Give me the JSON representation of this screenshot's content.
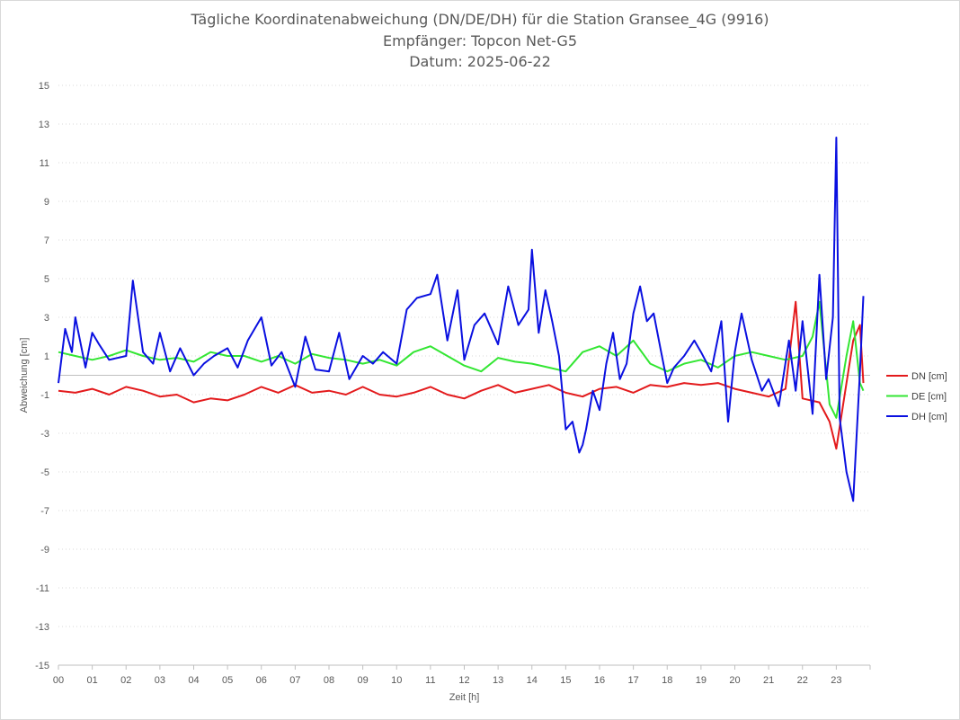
{
  "chart_data": {
    "type": "line",
    "title": "Tägliche Koordinatenabweichung (DN/DE/DH) für die Station Gransee_4G (9916)",
    "subtitle": "Empfänger: Topcon Net-G5",
    "date_line": "Datum: 2025-06-22",
    "xlabel": "Zeit [h]",
    "ylabel": "Abweichung [cm]",
    "ylim": [
      -15,
      15
    ],
    "xlim": [
      0,
      24
    ],
    "yticks": [
      "15",
      "13",
      "11",
      "9",
      "7",
      "5",
      "3",
      "1",
      "-1",
      "-3",
      "-5",
      "-7",
      "-9",
      "-11",
      "-13",
      "-15"
    ],
    "xticks": [
      "00",
      "01",
      "02",
      "03",
      "04",
      "05",
      "06",
      "07",
      "08",
      "09",
      "10",
      "11",
      "12",
      "13",
      "14",
      "15",
      "16",
      "17",
      "18",
      "19",
      "20",
      "21",
      "22",
      "23"
    ],
    "grid": "horizontal dotted",
    "legend_position": "right",
    "series": [
      {
        "name": "DN [cm]",
        "color": "#e31a1c",
        "x": [
          0,
          0.5,
          1,
          1.5,
          2,
          2.5,
          3,
          3.5,
          4,
          4.5,
          5,
          5.5,
          6,
          6.5,
          7,
          7.5,
          8,
          8.5,
          9,
          9.5,
          10,
          10.5,
          11,
          11.5,
          12,
          12.5,
          13,
          13.5,
          14,
          14.5,
          15,
          15.5,
          16,
          16.5,
          17,
          17.5,
          18,
          18.5,
          19,
          19.5,
          20,
          20.5,
          21,
          21.5,
          21.8,
          22,
          22.5,
          22.8,
          23,
          23.3,
          23.5,
          23.7,
          23.8
        ],
        "y": [
          -0.8,
          -0.9,
          -0.7,
          -1.0,
          -0.6,
          -0.8,
          -1.1,
          -1.0,
          -1.4,
          -1.2,
          -1.3,
          -1.0,
          -0.6,
          -0.9,
          -0.5,
          -0.9,
          -0.8,
          -1.0,
          -0.6,
          -1.0,
          -1.1,
          -0.9,
          -0.6,
          -1.0,
          -1.2,
          -0.8,
          -0.5,
          -0.9,
          -0.7,
          -0.5,
          -0.9,
          -1.1,
          -0.7,
          -0.6,
          -0.9,
          -0.5,
          -0.6,
          -0.4,
          -0.5,
          -0.4,
          -0.7,
          -0.9,
          -1.1,
          -0.7,
          3.8,
          -1.2,
          -1.4,
          -2.4,
          -3.8,
          -0.4,
          1.8,
          2.6,
          -0.4
        ]
      },
      {
        "name": "DE [cm]",
        "color": "#33e633",
        "x": [
          0,
          0.5,
          1,
          1.5,
          2,
          2.5,
          3,
          3.5,
          4,
          4.5,
          5,
          5.5,
          6,
          6.5,
          7,
          7.5,
          8,
          8.5,
          9,
          9.5,
          10,
          10.5,
          11,
          11.5,
          12,
          12.5,
          13,
          13.5,
          14,
          14.5,
          15,
          15.5,
          16,
          16.5,
          17,
          17.5,
          18,
          18.5,
          19,
          19.5,
          20,
          20.5,
          21,
          21.5,
          22,
          22.3,
          22.5,
          22.8,
          23,
          23.3,
          23.5,
          23.7,
          23.8
        ],
        "y": [
          1.2,
          1.0,
          0.8,
          1.0,
          1.3,
          1.0,
          0.8,
          0.9,
          0.7,
          1.2,
          1.0,
          1.0,
          0.7,
          1.0,
          0.6,
          1.1,
          0.9,
          0.8,
          0.6,
          0.8,
          0.5,
          1.2,
          1.5,
          1.0,
          0.5,
          0.2,
          0.9,
          0.7,
          0.6,
          0.4,
          0.2,
          1.2,
          1.5,
          1.0,
          1.8,
          0.6,
          0.2,
          0.6,
          0.8,
          0.4,
          1.0,
          1.2,
          1.0,
          0.8,
          1.0,
          2.0,
          3.8,
          -1.5,
          -2.2,
          1.0,
          2.8,
          -0.4,
          -0.8
        ]
      },
      {
        "name": "DH [cm]",
        "color": "#0a10e0",
        "x": [
          0,
          0.2,
          0.4,
          0.5,
          0.8,
          1,
          1.2,
          1.5,
          2,
          2.2,
          2.5,
          2.8,
          3,
          3.3,
          3.6,
          4,
          4.3,
          4.6,
          5,
          5.3,
          5.6,
          6,
          6.3,
          6.6,
          7,
          7.3,
          7.6,
          8,
          8.3,
          8.6,
          9,
          9.3,
          9.6,
          10,
          10.3,
          10.6,
          11,
          11.2,
          11.5,
          11.8,
          12,
          12.3,
          12.6,
          13,
          13.3,
          13.6,
          13.9,
          14,
          14.2,
          14.4,
          14.6,
          14.8,
          15,
          15.2,
          15.4,
          15.5,
          15.6,
          15.8,
          16,
          16.2,
          16.4,
          16.6,
          16.8,
          17,
          17.2,
          17.4,
          17.6,
          17.8,
          18,
          18.2,
          18.5,
          18.8,
          19,
          19.3,
          19.6,
          19.8,
          20,
          20.2,
          20.5,
          20.8,
          21,
          21.3,
          21.6,
          21.8,
          22,
          22.3,
          22.5,
          22.7,
          22.9,
          23,
          23.1,
          23.3,
          23.5,
          23.7,
          23.8
        ],
        "y": [
          -0.4,
          2.4,
          1.2,
          3.0,
          0.4,
          2.2,
          1.6,
          0.8,
          1.0,
          4.9,
          1.2,
          0.6,
          2.2,
          0.2,
          1.4,
          0.0,
          0.6,
          1.0,
          1.4,
          0.4,
          1.8,
          3.0,
          0.5,
          1.2,
          -0.6,
          2.0,
          0.3,
          0.2,
          2.2,
          -0.2,
          1.0,
          0.6,
          1.2,
          0.6,
          3.4,
          4.0,
          4.2,
          5.2,
          1.8,
          4.4,
          0.8,
          2.6,
          3.2,
          1.6,
          4.6,
          2.6,
          3.4,
          6.5,
          2.2,
          4.4,
          2.8,
          1.0,
          -2.8,
          -2.4,
          -4.0,
          -3.6,
          -2.8,
          -0.8,
          -1.8,
          0.6,
          2.2,
          -0.2,
          0.6,
          3.2,
          4.6,
          2.8,
          3.2,
          1.4,
          -0.4,
          0.4,
          1.0,
          1.8,
          1.2,
          0.2,
          2.8,
          -2.4,
          1.2,
          3.2,
          0.8,
          -0.8,
          -0.2,
          -1.6,
          1.8,
          -0.8,
          2.8,
          -2.0,
          5.2,
          -0.2,
          3.0,
          12.3,
          -2.2,
          -5.0,
          -6.5,
          0.2,
          4.1
        ]
      }
    ]
  }
}
